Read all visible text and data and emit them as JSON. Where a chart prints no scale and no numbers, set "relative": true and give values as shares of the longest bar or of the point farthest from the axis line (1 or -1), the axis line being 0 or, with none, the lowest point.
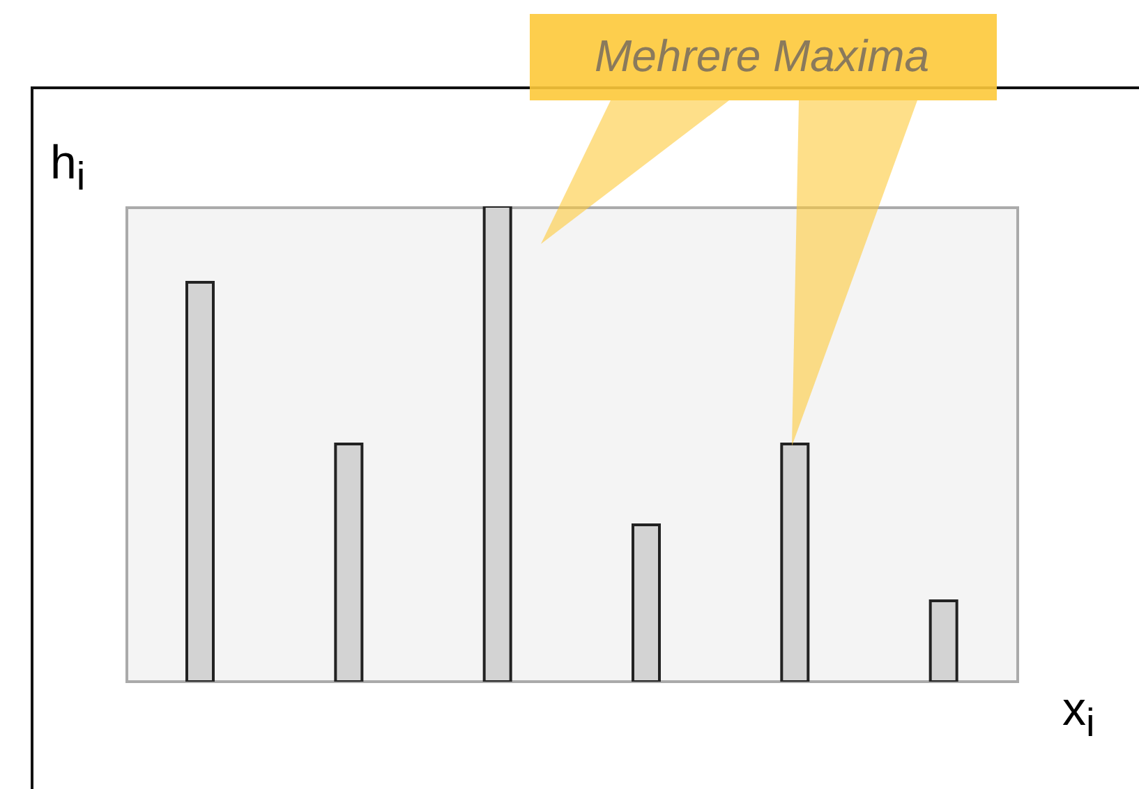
{
  "chart_data": {
    "type": "bar",
    "relative": true,
    "xlabel": "x$_{i}$",
    "ylabel": "h$_{i}$",
    "annotations": [
      "Mehrere Maxima"
    ],
    "categories": [
      null,
      null,
      null,
      null,
      null,
      null
    ],
    "values": [
      0.84,
      0.5,
      1,
      0.33,
      0.5,
      0.17
    ],
    "color": "#d3d3d3"
  }
}
